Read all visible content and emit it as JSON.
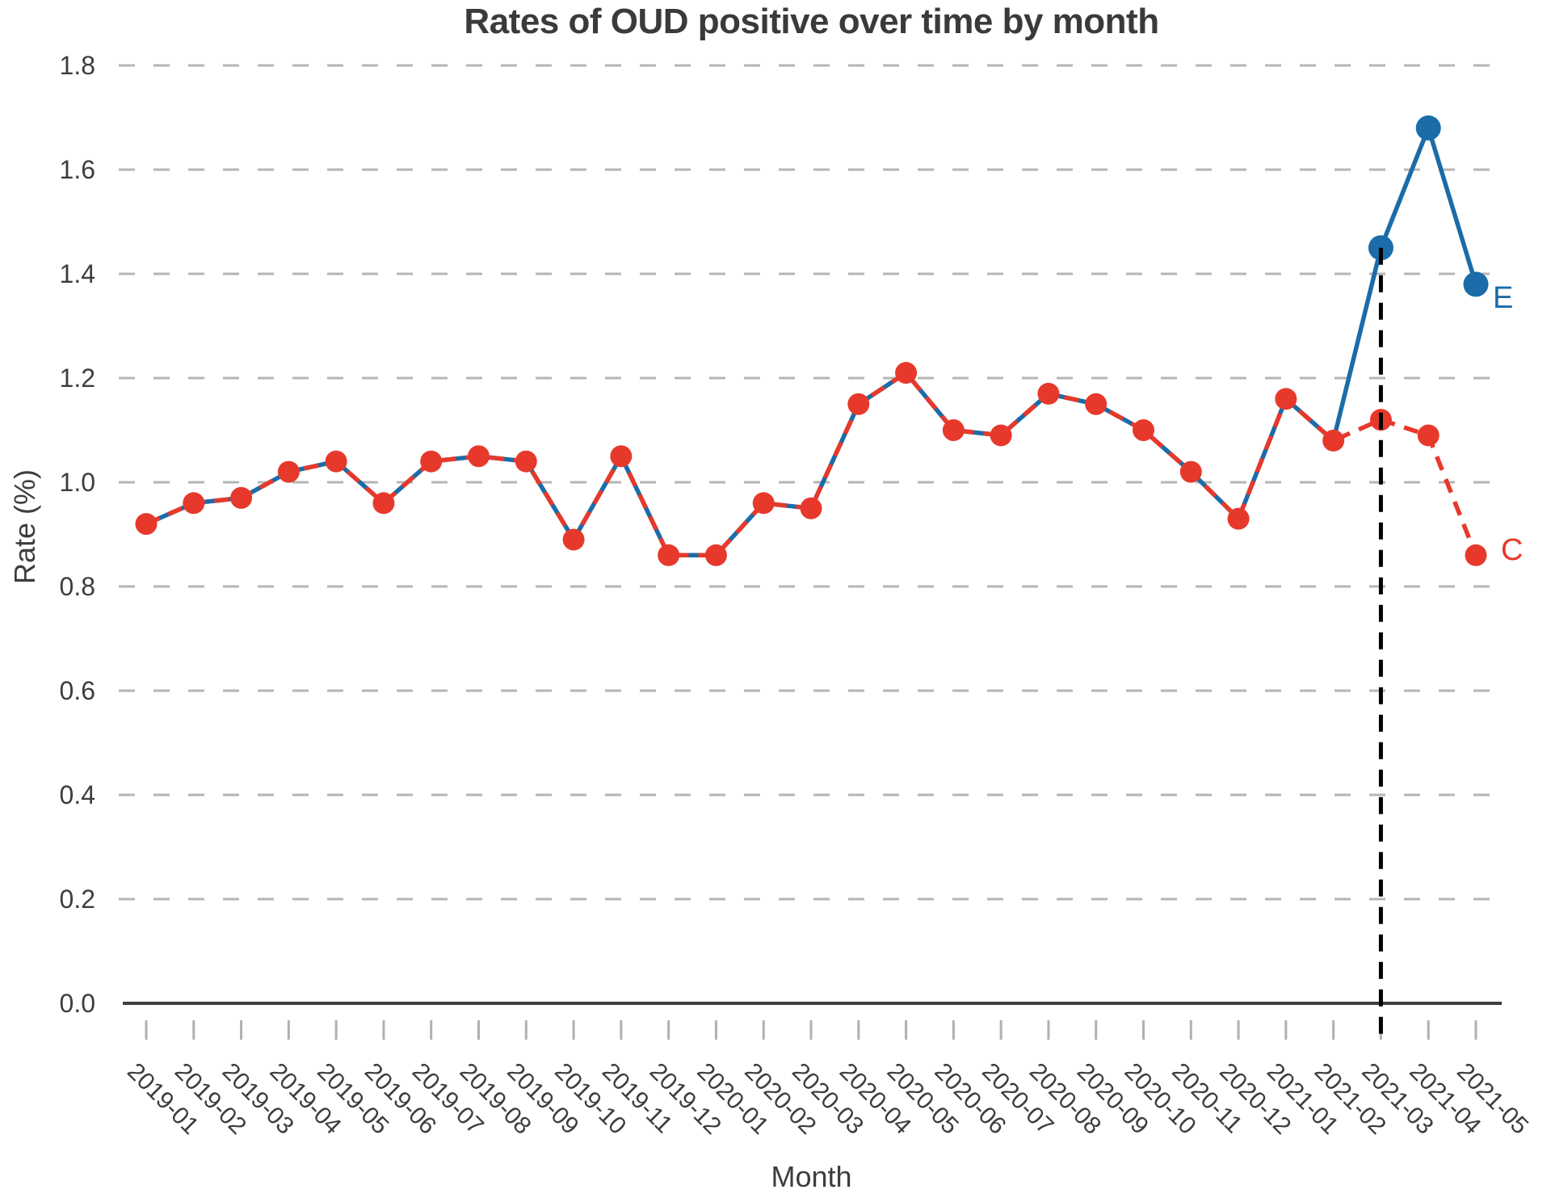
{
  "chart_data": {
    "type": "line",
    "title": "Rates of OUD positive over time by month",
    "xlabel": "Month",
    "ylabel": "Rate (%)",
    "x_categories": [
      "2019-01",
      "2019-02",
      "2019-03",
      "2019-04",
      "2019-05",
      "2019-06",
      "2019-07",
      "2019-08",
      "2019-09",
      "2019-10",
      "2019-11",
      "2019-12",
      "2020-01",
      "2020-02",
      "2020-03",
      "2020-04",
      "2020-05",
      "2020-06",
      "2020-07",
      "2020-08",
      "2020-09",
      "2020-10",
      "2020-11",
      "2020-12",
      "2021-01",
      "2021-02",
      "2021-03",
      "2021-04",
      "2021-05"
    ],
    "ylim": [
      0.0,
      1.8
    ],
    "ytick_labels": [
      "0.0",
      "0.2",
      "0.4",
      "0.6",
      "0.8",
      "1.0",
      "1.2",
      "1.4",
      "1.6",
      "1.8"
    ],
    "ytick_values": [
      0.0,
      0.2,
      0.4,
      0.6,
      0.8,
      1.0,
      1.2,
      1.4,
      1.6,
      1.8
    ],
    "grid": "horizontal-dashed",
    "legend_position": "inline-end-of-line",
    "series": [
      {
        "name": "E",
        "color": "#1b6ca8",
        "line_style": "solid",
        "marker": "circle",
        "values": [
          0.92,
          0.96,
          0.97,
          1.02,
          1.04,
          0.96,
          1.04,
          1.05,
          1.04,
          0.89,
          1.05,
          0.86,
          0.86,
          0.96,
          0.95,
          1.15,
          1.21,
          1.1,
          1.09,
          1.17,
          1.15,
          1.1,
          1.02,
          0.93,
          1.16,
          1.08,
          1.45,
          1.68,
          1.38
        ]
      },
      {
        "name": "C",
        "color": "#e7392b",
        "line_style": "dashed",
        "marker": "circle",
        "values": [
          0.92,
          0.96,
          0.97,
          1.02,
          1.04,
          0.96,
          1.04,
          1.05,
          1.04,
          0.89,
          1.05,
          0.86,
          0.86,
          0.96,
          0.95,
          1.15,
          1.21,
          1.1,
          1.09,
          1.17,
          1.15,
          1.1,
          1.02,
          0.93,
          1.16,
          1.08,
          1.12,
          1.09,
          0.86
        ]
      }
    ],
    "divergence_start": "2021-02",
    "annotations": [
      {
        "type": "vline",
        "x": "2021-03",
        "color": "#000000",
        "line_style": "dashed",
        "y_from": 0.0,
        "y_to": 1.45
      }
    ],
    "axis_colors": {
      "axis_line": "#3f3f3f",
      "gridline": "#b5b5b5",
      "tick_mark": "#b0b0b0",
      "tick_text": "#3d3d3d"
    }
  }
}
